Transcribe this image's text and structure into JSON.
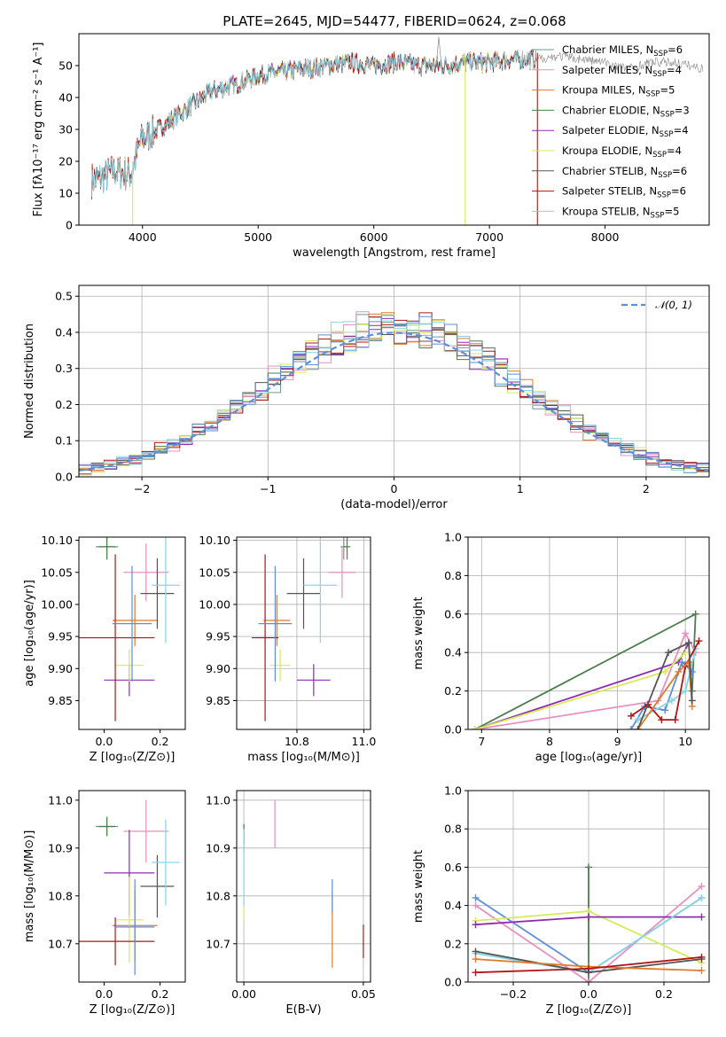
{
  "figure": {
    "title": "PLATE=2645, MJD=54477, FIBERID=0624, z=0.068",
    "model_colors": {
      "Chabrier MILES": "#6c9a8b",
      "Salpeter MILES": "#e88fc0",
      "Kroupa MILES": "#e07b2a",
      "Chabrier ELODIE": "#4e7d4e",
      "Salpeter ELODIE": "#8e2bb0",
      "Kroupa ELODIE": "#d7ea5a",
      "Chabrier STELIB": "#555555",
      "Salpeter STELIB": "#b01515",
      "Kroupa STELIB": "#86d6e6"
    },
    "accent_blue": "#5b8fd9"
  },
  "chart_data": [
    {
      "id": "spectrum",
      "type": "line",
      "title": "PLATE=2645, MJD=54477, FIBERID=0624, z=0.068",
      "xlabel": "wavelength [Angstrom, rest frame]",
      "ylabel": "Flux [fλ10⁻¹⁷ erg cm⁻² s⁻¹ A⁻¹]",
      "xlim": [
        3450,
        8900
      ],
      "ylim": [
        0,
        60
      ],
      "xticks": [
        4000,
        5000,
        6000,
        7000,
        8000
      ],
      "yticks": [
        0,
        10,
        20,
        30,
        40,
        50
      ],
      "grid": false,
      "legend": "top-right",
      "legend_entries": [
        {
          "label": "Chabrier MILES, N",
          "sub": "SSP",
          "tail": "=6",
          "model": "Chabrier MILES"
        },
        {
          "label": "Salpeter MILES, N",
          "sub": "SSP",
          "tail": "=4",
          "model": "Salpeter MILES"
        },
        {
          "label": "Kroupa MILES, N",
          "sub": "SSP",
          "tail": "=5",
          "model": "Kroupa MILES"
        },
        {
          "label": "Chabrier ELODIE, N",
          "sub": "SSP",
          "tail": "=3",
          "model": "Chabrier ELODIE"
        },
        {
          "label": "Salpeter ELODIE, N",
          "sub": "SSP",
          "tail": "=4",
          "model": "Salpeter ELODIE"
        },
        {
          "label": "Kroupa ELODIE, N",
          "sub": "SSP",
          "tail": "=4",
          "model": "Kroupa ELODIE"
        },
        {
          "label": "Chabrier STELIB, N",
          "sub": "SSP",
          "tail": "=6",
          "model": "Chabrier STELIB"
        },
        {
          "label": "Salpeter STELIB, N",
          "sub": "SSP",
          "tail": "=6",
          "model": "Salpeter STELIB"
        },
        {
          "label": "Kroupa STELIB, N",
          "sub": "SSP",
          "tail": "=5",
          "model": "Kroupa STELIB"
        }
      ],
      "continuum_x": [
        3560,
        3650,
        3760,
        3900,
        3990,
        4100,
        4250,
        4400,
        4600,
        4800,
        5000,
        5200,
        5400,
        5600,
        5800,
        6000,
        6200,
        6400,
        6600,
        6800,
        7000,
        7200,
        7400
      ],
      "continuum_y": [
        14,
        15,
        17,
        16,
        27,
        29,
        33,
        37,
        42,
        44,
        47,
        48,
        49,
        50,
        51,
        50,
        51,
        50,
        50,
        51,
        51,
        52,
        52
      ],
      "observed_extension_x": [
        7400,
        7600,
        7800,
        8000,
        8200,
        8400,
        8600,
        8850
      ],
      "observed_extension_y": [
        52,
        53,
        52,
        51,
        49,
        51,
        51,
        49
      ],
      "vertical_spikes": [
        {
          "x": 3915,
          "model": "Kroupa ELODIE"
        },
        {
          "x": 6790,
          "model": "Kroupa ELODIE"
        },
        {
          "x": 7415,
          "model": "Salpeter STELIB"
        }
      ]
    },
    {
      "id": "residual_hist",
      "type": "histogram",
      "xlabel": "(data-model)/error",
      "ylabel": "Normed distribution",
      "xlim": [
        -2.5,
        2.5
      ],
      "ylim": [
        0,
        0.53
      ],
      "xticks": [
        -2,
        -1,
        0,
        1,
        2
      ],
      "yticks": [
        0.0,
        0.1,
        0.2,
        0.3,
        0.4,
        0.5
      ],
      "grid": true,
      "legend": "top-right",
      "legend_label": "𝒩(0, 1)",
      "bin_width": 0.1,
      "reference": {
        "type": "normal",
        "mean": 0,
        "sigma": 1
      }
    },
    {
      "id": "age_vs_Z",
      "type": "errorbar",
      "xlabel": "Z [log₁₀(Z/Z⊙)]",
      "ylabel": "age  [log₁₀(age/yr)]",
      "xlim": [
        -0.09,
        0.29
      ],
      "ylim": [
        9.805,
        10.105
      ],
      "xticks": [
        0.0,
        0.2
      ],
      "yticks": [
        9.85,
        9.9,
        9.95,
        10.0,
        10.05,
        10.1
      ],
      "grid": false,
      "points": [
        {
          "model": "Chabrier MILES",
          "x": 0.01,
          "xerr": 0.04,
          "y": 10.09,
          "yerr": 0.02
        },
        {
          "model": "Salpeter MILES",
          "x": 0.15,
          "xerr": 0.08,
          "y": 10.05,
          "yerr": 0.045
        },
        {
          "model": "Kroupa MILES",
          "x": 0.11,
          "xerr": 0.08,
          "y": 9.975,
          "yerr": 0.04
        },
        {
          "model": "Chabrier ELODIE",
          "x": 0.01,
          "xerr": 0.03,
          "y": 10.09,
          "yerr": 0.02
        },
        {
          "model": "Salpeter ELODIE",
          "x": 0.09,
          "xerr": 0.09,
          "y": 9.882,
          "yerr": 0.025
        },
        {
          "model": "Kroupa ELODIE",
          "x": 0.09,
          "xerr": 0.05,
          "y": 9.905,
          "yerr": 0.025
        },
        {
          "model": "Chabrier STELIB",
          "x": 0.19,
          "xerr": 0.06,
          "y": 10.017,
          "yerr": 0.055
        },
        {
          "model": "Salpeter STELIB",
          "x": 0.04,
          "xerr": 0.14,
          "y": 9.948,
          "yerr": 0.13
        },
        {
          "model": "Kroupa STELIB",
          "x": 0.22,
          "xerr": 0.05,
          "y": 10.03,
          "yerr": 0.09
        },
        {
          "model": "Blue",
          "x": 0.1,
          "xerr": 0.07,
          "y": 9.97,
          "yerr": 0.09
        }
      ]
    },
    {
      "id": "age_vs_mass",
      "type": "errorbar",
      "xlabel": "mass [log₁₀(M/M⊙)]",
      "ylabel": "",
      "xlim": [
        10.62,
        11.02
      ],
      "ylim": [
        9.805,
        10.105
      ],
      "xticks": [
        10.8,
        11.0
      ],
      "yticks": [
        9.85,
        9.9,
        9.95,
        10.0,
        10.05,
        10.1
      ],
      "grid": true,
      "points": [
        {
          "model": "Chabrier MILES",
          "x": 10.94,
          "xerr": 0.01,
          "y": 10.09,
          "yerr": 0.02
        },
        {
          "model": "Salpeter MILES",
          "x": 10.935,
          "xerr": 0.04,
          "y": 10.05,
          "yerr": 0.04
        },
        {
          "model": "Kroupa MILES",
          "x": 10.74,
          "xerr": 0.04,
          "y": 9.975,
          "yerr": 0.04
        },
        {
          "model": "Chabrier ELODIE",
          "x": 10.95,
          "xerr": 0.01,
          "y": 10.09,
          "yerr": 0.02
        },
        {
          "model": "Salpeter ELODIE",
          "x": 10.85,
          "xerr": 0.05,
          "y": 9.882,
          "yerr": 0.025
        },
        {
          "model": "Kroupa ELODIE",
          "x": 10.75,
          "xerr": 0.03,
          "y": 9.905,
          "yerr": 0.025
        },
        {
          "model": "Chabrier STELIB",
          "x": 10.82,
          "xerr": 0.05,
          "y": 10.017,
          "yerr": 0.055
        },
        {
          "model": "Salpeter STELIB",
          "x": 10.705,
          "xerr": 0.04,
          "y": 9.948,
          "yerr": 0.13
        },
        {
          "model": "Kroupa STELIB",
          "x": 10.87,
          "xerr": 0.05,
          "y": 10.03,
          "yerr": 0.09
        },
        {
          "model": "Blue",
          "x": 10.735,
          "xerr": 0.05,
          "y": 9.97,
          "yerr": 0.09
        }
      ]
    },
    {
      "id": "weight_vs_age",
      "type": "line",
      "xlabel": "age  [log₁₀(age/yr)]",
      "ylabel": "mass weight",
      "xlim": [
        6.8,
        10.35
      ],
      "ylim": [
        0,
        1.0
      ],
      "xticks": [
        7,
        8,
        9,
        10
      ],
      "yticks": [
        0.0,
        0.2,
        0.4,
        0.6,
        0.8,
        1.0
      ],
      "grid": true,
      "series": [
        {
          "model": "Chabrier ELODIE",
          "x": [
            6.9,
            10.15,
            10.1
          ],
          "y": [
            0.0,
            0.6,
            0.2
          ]
        },
        {
          "model": "Salpeter ELODIE",
          "x": [
            6.9,
            9.9,
            10.05
          ],
          "y": [
            0.0,
            0.35,
            0.45
          ]
        },
        {
          "model": "Salpeter MILES",
          "x": [
            6.9,
            9.6,
            10.0,
            10.15
          ],
          "y": [
            0.0,
            0.15,
            0.5,
            0.4
          ]
        },
        {
          "model": "Kroupa ELODIE",
          "x": [
            6.9,
            9.7,
            10.0
          ],
          "y": [
            0.0,
            0.3,
            0.4
          ]
        },
        {
          "model": "Blue",
          "x": [
            9.2,
            9.4,
            9.7,
            9.95,
            10.1
          ],
          "y": [
            0.0,
            0.12,
            0.1,
            0.35,
            0.3
          ]
        },
        {
          "model": "Kroupa STELIB",
          "x": [
            9.3,
            9.8,
            10.0,
            10.15
          ],
          "y": [
            0.05,
            0.15,
            0.2,
            0.42
          ]
        },
        {
          "model": "Salpeter STELIB",
          "x": [
            9.2,
            9.45,
            9.65,
            9.85,
            10.0,
            10.2
          ],
          "y": [
            0.07,
            0.13,
            0.05,
            0.05,
            0.33,
            0.46
          ]
        },
        {
          "model": "Kroupa MILES",
          "x": [
            9.3,
            9.9,
            10.05,
            10.1
          ],
          "y": [
            0.0,
            0.3,
            0.35,
            0.12
          ]
        },
        {
          "model": "Chabrier STELIB",
          "x": [
            9.3,
            9.75,
            10.05,
            10.1
          ],
          "y": [
            0.0,
            0.4,
            0.45,
            0.15
          ]
        }
      ]
    },
    {
      "id": "mass_vs_Z",
      "type": "errorbar",
      "xlabel": "Z [log₁₀(Z/Z⊙)]",
      "ylabel": "mass [log₁₀(M/M⊙)]",
      "xlim": [
        -0.09,
        0.29
      ],
      "ylim": [
        10.62,
        11.02
      ],
      "xticks": [
        0.0,
        0.2
      ],
      "yticks": [
        10.7,
        10.8,
        10.9,
        11.0
      ],
      "grid": false,
      "points": [
        {
          "model": "Chabrier MILES",
          "x": 0.01,
          "xerr": 0.04,
          "y": 10.945,
          "yerr": 0.02
        },
        {
          "model": "Salpeter MILES",
          "x": 0.15,
          "xerr": 0.08,
          "y": 10.935,
          "yerr": 0.065
        },
        {
          "model": "Kroupa MILES",
          "x": 0.11,
          "xerr": 0.08,
          "y": 10.738,
          "yerr": 0.075
        },
        {
          "model": "Chabrier ELODIE",
          "x": 0.01,
          "xerr": 0.03,
          "y": 10.945,
          "yerr": 0.02
        },
        {
          "model": "Salpeter ELODIE",
          "x": 0.09,
          "xerr": 0.09,
          "y": 10.848,
          "yerr": 0.09
        },
        {
          "model": "Kroupa ELODIE",
          "x": 0.09,
          "xerr": 0.05,
          "y": 10.75,
          "yerr": 0.09
        },
        {
          "model": "Chabrier STELIB",
          "x": 0.19,
          "xerr": 0.06,
          "y": 10.82,
          "yerr": 0.065
        },
        {
          "model": "Salpeter STELIB",
          "x": 0.04,
          "xerr": 0.14,
          "y": 10.705,
          "yerr": 0.05
        },
        {
          "model": "Kroupa STELIB",
          "x": 0.22,
          "xerr": 0.05,
          "y": 10.87,
          "yerr": 0.09
        },
        {
          "model": "Blue",
          "x": 0.11,
          "xerr": 0.07,
          "y": 10.735,
          "yerr": 0.1
        }
      ]
    },
    {
      "id": "mass_vs_ebv",
      "type": "errorbar",
      "xlabel": "E(B-V)",
      "ylabel": "",
      "xlim": [
        -0.003,
        0.053
      ],
      "ylim": [
        10.62,
        11.02
      ],
      "xticks": [
        0.0,
        0.05
      ],
      "yticks": [
        10.7,
        10.8,
        10.9,
        11.0
      ],
      "grid": true,
      "points": [
        {
          "model": "Chabrier MILES",
          "x": 0.0,
          "xerr": 0.0,
          "y": 10.92,
          "yerr": 0.03
        },
        {
          "model": "Salpeter MILES",
          "x": 0.013,
          "xerr": 0.0,
          "y": 10.95,
          "yerr": 0.05
        },
        {
          "model": "Kroupa MILES",
          "x": 0.037,
          "xerr": 0.0,
          "y": 10.73,
          "yerr": 0.08
        },
        {
          "model": "Chabrier ELODIE",
          "x": 0.0,
          "xerr": 0.0,
          "y": 10.93,
          "yerr": 0.02
        },
        {
          "model": "Kroupa ELODIE",
          "x": 0.0,
          "xerr": 0.0,
          "y": 10.78,
          "yerr": 0.03
        },
        {
          "model": "Salpeter STELIB",
          "x": 0.05,
          "xerr": 0.0,
          "y": 10.705,
          "yerr": 0.035
        },
        {
          "model": "Kroupa STELIB",
          "x": 0.0,
          "xerr": 0.0,
          "y": 10.86,
          "yerr": 0.08
        },
        {
          "model": "Blue",
          "x": 0.037,
          "xerr": 0.0,
          "y": 10.8,
          "yerr": 0.035
        }
      ]
    },
    {
      "id": "weight_vs_Z",
      "type": "line",
      "xlabel": "Z [log₁₀(Z/Z⊙)]",
      "ylabel": "mass weight",
      "xlim": [
        -0.32,
        0.32
      ],
      "ylim": [
        0,
        1.0
      ],
      "xticks": [
        -0.2,
        0.0,
        0.2
      ],
      "yticks": [
        0.0,
        0.2,
        0.4,
        0.6,
        0.8,
        1.0
      ],
      "grid": true,
      "series": [
        {
          "model": "Chabrier ELODIE",
          "x": [
            0.0,
            0.0
          ],
          "y": [
            0.0,
            0.6
          ]
        },
        {
          "model": "Salpeter MILES",
          "x": [
            -0.3,
            0.0,
            0.3
          ],
          "y": [
            0.4,
            0.0,
            0.5
          ]
        },
        {
          "model": "Blue",
          "x": [
            -0.3,
            0.0,
            0.3
          ],
          "y": [
            0.44,
            0.05,
            0.44
          ]
        },
        {
          "model": "Kroupa ELODIE",
          "x": [
            -0.3,
            0.0,
            0.3
          ],
          "y": [
            0.32,
            0.37,
            0.1
          ]
        },
        {
          "model": "Salpeter ELODIE",
          "x": [
            -0.3,
            0.0,
            0.3
          ],
          "y": [
            0.3,
            0.34,
            0.34
          ]
        },
        {
          "model": "Kroupa STELIB",
          "x": [
            -0.3,
            0.0,
            0.3
          ],
          "y": [
            0.15,
            0.05,
            0.44
          ]
        },
        {
          "model": "Chabrier STELIB",
          "x": [
            -0.3,
            0.0,
            0.3
          ],
          "y": [
            0.16,
            0.05,
            0.12
          ]
        },
        {
          "model": "Kroupa MILES",
          "x": [
            -0.3,
            0.0,
            0.3
          ],
          "y": [
            0.12,
            0.08,
            0.06
          ]
        },
        {
          "model": "Salpeter STELIB",
          "x": [
            -0.3,
            0.0,
            0.3
          ],
          "y": [
            0.05,
            0.07,
            0.13
          ]
        }
      ]
    }
  ]
}
